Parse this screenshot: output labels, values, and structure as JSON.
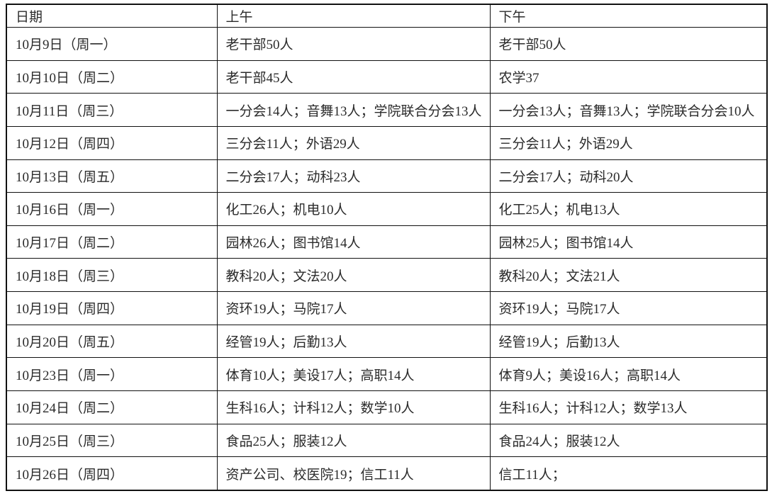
{
  "table": {
    "columns": [
      {
        "key": "date",
        "label": "日期"
      },
      {
        "key": "morning",
        "label": "上午"
      },
      {
        "key": "afternoon",
        "label": "下午"
      }
    ],
    "rows": [
      {
        "date": "10月9日（周一）",
        "morning": "老干部50人",
        "afternoon": "老干部50人"
      },
      {
        "date": "10月10日（周二）",
        "morning": "老干部45人",
        "afternoon": "农学37"
      },
      {
        "date": "10月11日（周三）",
        "morning": "一分会14人；音舞13人；学院联合分会13人",
        "afternoon": "一分会13人；音舞13人；学院联合分会10人"
      },
      {
        "date": "10月12日（周四）",
        "morning": "三分会11人；外语29人",
        "afternoon": "三分会11人；外语29人"
      },
      {
        "date": "10月13日（周五）",
        "morning": "二分会17人；动科23人",
        "afternoon": "二分会17人；动科20人"
      },
      {
        "date": "10月16日（周一）",
        "morning": "化工26人；机电10人",
        "afternoon": "化工25人；机电13人"
      },
      {
        "date": "10月17日（周二）",
        "morning": "园林26人；图书馆14人",
        "afternoon": "园林25人；图书馆14人"
      },
      {
        "date": "10月18日（周三）",
        "morning": "教科20人；文法20人",
        "afternoon": "教科20人；文法21人"
      },
      {
        "date": "10月19日（周四）",
        "morning": "资环19人；马院17人",
        "afternoon": "资环19人；马院17人"
      },
      {
        "date": "10月20日（周五）",
        "morning": "经管19人；后勤13人",
        "afternoon": "经管19人；后勤13人"
      },
      {
        "date": "10月23日（周一）",
        "morning": "体育10人；美设17人；高职14人",
        "afternoon": "体育9人；美设16人；高职14人"
      },
      {
        "date": "10月24日（周二）",
        "morning": "生科16人；计科12人；数学10人",
        "afternoon": "生科16人；计科12人；数学13人"
      },
      {
        "date": "10月25日（周三）",
        "morning": "食品25人；服装12人",
        "afternoon": "食品24人；服装12人"
      },
      {
        "date": "10月26日（周四）",
        "morning": "资产公司、校医院19；信工11人",
        "afternoon": "信工11人；"
      }
    ],
    "border_color": "#111111",
    "text_color": "#2b2b2b",
    "background_color": "#ffffff"
  }
}
